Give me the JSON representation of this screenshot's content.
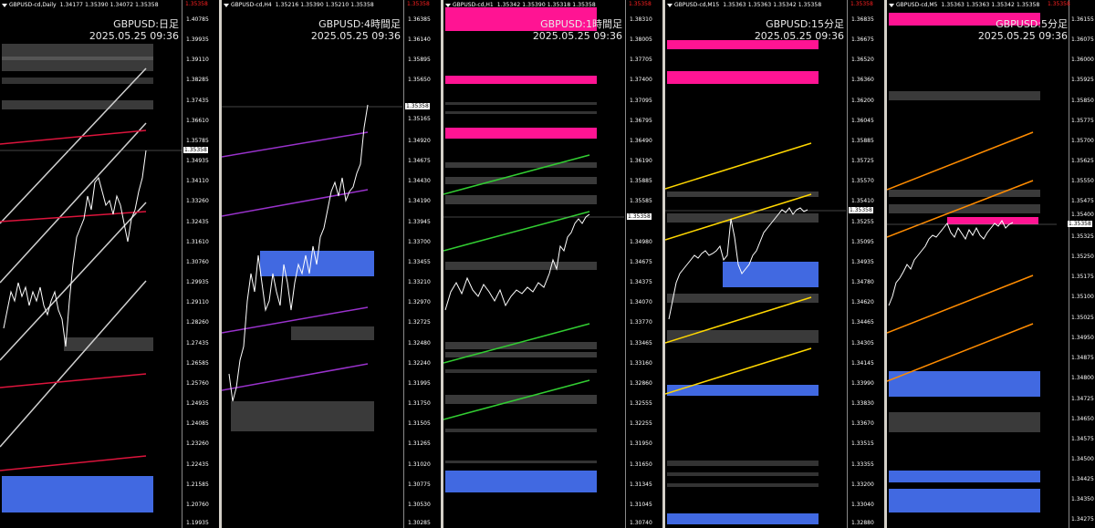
{
  "colors": {
    "background": "#000000",
    "zone_gray": "#3a3a3a",
    "zone_gray_light": "#4a4a4a",
    "zone_blue": "#4169e1",
    "zone_pink": "#ff1493",
    "candle": "#ffffff",
    "price_line": "#888888"
  },
  "current_price": "1.35358",
  "top_price_red": "1.35358",
  "panels": [
    {
      "symbol": "GBPUSD-cd,Daily",
      "ohlc": "1.34177 1.35390 1.34072 1.35358",
      "timeframe": "GBPUSD:日足",
      "timestamp": "2025.05.25 09:36",
      "channel_color": "#e0e0e0",
      "channel2_color": "#dc143c",
      "ticks": [
        "1.40785",
        "1.39935",
        "1.39110",
        "1.38285",
        "1.37435",
        "1.36610",
        "1.35785",
        "1.34935",
        "1.34110",
        "1.33260",
        "1.32435",
        "1.31610",
        "1.30760",
        "1.29935",
        "1.29110",
        "1.28260",
        "1.27435",
        "1.26585",
        "1.25760",
        "1.24935",
        "1.24085",
        "1.23260",
        "1.22435",
        "1.21585",
        "1.20760",
        "1.19935"
      ]
    },
    {
      "symbol": "GBPUSD-cd,H4",
      "ohlc": "1.35216 1.35390 1.35210 1.35358",
      "timeframe": "GBPUSD:4時間足",
      "timestamp": "2025.05.25 09:36",
      "channel_color": "#9932cc",
      "ticks": [
        "1.36385",
        "1.36140",
        "1.35895",
        "1.35650",
        "1.35410",
        "1.35165",
        "1.34920",
        "1.34675",
        "1.34430",
        "1.34190",
        "1.33945",
        "1.33700",
        "1.33455",
        "1.33210",
        "1.32970",
        "1.32725",
        "1.32480",
        "1.32240",
        "1.31995",
        "1.31750",
        "1.31505",
        "1.31265",
        "1.31020",
        "1.30775",
        "1.30530",
        "1.30285"
      ]
    },
    {
      "symbol": "GBPUSD-cd,H1",
      "ohlc": "1.35342 1.35390 1.35318 1.35358",
      "timeframe": "GBPUSD:1時間足",
      "timestamp": "2025.05.25 09:36",
      "channel_color": "#32cd32",
      "ticks": [
        "1.38310",
        "1.38005",
        "1.37705",
        "1.37400",
        "1.37095",
        "1.36795",
        "1.36490",
        "1.36190",
        "1.35885",
        "1.35585",
        "1.35280",
        "1.34980",
        "1.34675",
        "1.34375",
        "1.34070",
        "1.33770",
        "1.33465",
        "1.33160",
        "1.32860",
        "1.32555",
        "1.32255",
        "1.31950",
        "1.31650",
        "1.31345",
        "1.31045",
        "1.30740"
      ]
    },
    {
      "symbol": "GBPUSD-cd,M15",
      "ohlc": "1.35363 1.35363 1.35342 1.35358",
      "timeframe": "GBPUSD:15分足",
      "timestamp": "2025.05.25 09:36",
      "channel_color": "#ffd700",
      "ticks": [
        "1.36835",
        "1.36675",
        "1.36520",
        "1.36360",
        "1.36200",
        "1.36045",
        "1.35885",
        "1.35725",
        "1.35570",
        "1.35410",
        "1.35255",
        "1.35095",
        "1.34935",
        "1.34780",
        "1.34620",
        "1.34465",
        "1.34305",
        "1.34145",
        "1.33990",
        "1.33830",
        "1.33670",
        "1.33515",
        "1.33355",
        "1.33200",
        "1.33040",
        "1.32880"
      ]
    },
    {
      "symbol": "GBPUSD-cd,M5",
      "ohlc": "1.35363 1.35363 1.35342 1.35358",
      "timeframe": "GBPUSD:5分足",
      "timestamp": "2025.05.25 09:36",
      "channel_color": "#ff8c00",
      "ticks": [
        "1.36155",
        "1.36075",
        "1.36000",
        "1.35925",
        "1.35850",
        "1.35775",
        "1.35700",
        "1.35625",
        "1.35550",
        "1.35475",
        "1.35400",
        "1.35325",
        "1.35250",
        "1.35175",
        "1.35100",
        "1.35025",
        "1.34950",
        "1.34875",
        "1.34800",
        "1.34725",
        "1.34650",
        "1.34575",
        "1.34500",
        "1.34425",
        "1.34350",
        "1.34275"
      ]
    }
  ]
}
